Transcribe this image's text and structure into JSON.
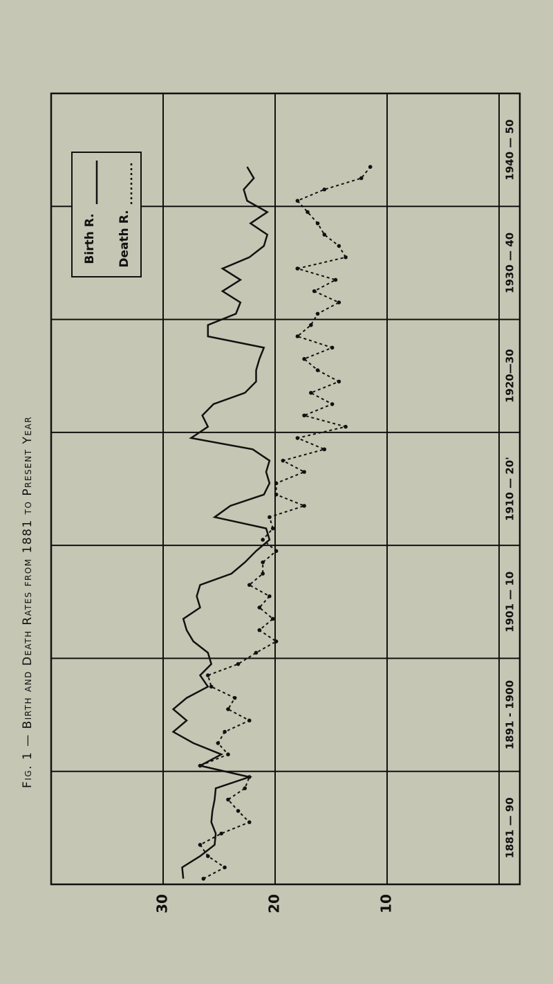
{
  "chart_data": {
    "type": "line",
    "title": "Fig. 1 — Birth and Death Rates from 1881 to Present Year",
    "x": [
      1881,
      1882,
      1883,
      1884,
      1885,
      1886,
      1887,
      1888,
      1889,
      1890,
      1891,
      1892,
      1893,
      1894,
      1895,
      1896,
      1897,
      1898,
      1899,
      1900,
      1901,
      1902,
      1903,
      1904,
      1905,
      1906,
      1907,
      1908,
      1909,
      1910,
      1911,
      1912,
      1913,
      1914,
      1915,
      1916,
      1917,
      1918,
      1919,
      1920,
      1921,
      1922,
      1923,
      1924,
      1925,
      1926,
      1927,
      1928,
      1929,
      1930,
      1931,
      1932,
      1933,
      1934,
      1935,
      1936,
      1937,
      1938,
      1939,
      1940,
      1941,
      1942,
      1943,
      1944
    ],
    "series": [
      {
        "name": "Birth R.",
        "color": "#111111",
        "style": "solid",
        "values": [
          28.2,
          28.3,
          26.7,
          25.4,
          25.3,
          25.7,
          25.6,
          25.4,
          25.3,
          22.3,
          26.7,
          24.8,
          27.3,
          29.1,
          27.9,
          29.1,
          27.9,
          26.0,
          26.7,
          25.7,
          26.0,
          27.3,
          27.9,
          28.2,
          26.7,
          27.0,
          26.7,
          23.9,
          22.7,
          21.7,
          20.5,
          20.8,
          25.4,
          24.0,
          21.0,
          20.5,
          20.8,
          20.5,
          22.0,
          27.5,
          26.0,
          26.5,
          25.5,
          22.7,
          21.7,
          21.7,
          21.4,
          21.0,
          26.0,
          26.0,
          23.5,
          23.1,
          24.7,
          23.1,
          24.7,
          22.3,
          21.0,
          20.7,
          22.2,
          20.7,
          22.5,
          22.8,
          21.9,
          22.5
        ]
      },
      {
        "name": "Death R.",
        "color": "#111111",
        "style": "dotted",
        "values": [
          26.4,
          24.5,
          26.0,
          26.7,
          24.8,
          22.3,
          23.3,
          24.2,
          22.7,
          22.3,
          26.7,
          24.2,
          25.1,
          24.5,
          22.3,
          24.2,
          23.6,
          25.7,
          26.0,
          23.3,
          21.7,
          19.9,
          21.4,
          20.2,
          21.4,
          20.5,
          22.3,
          21.1,
          21.1,
          19.9,
          21.1,
          20.2,
          20.5,
          17.4,
          19.9,
          19.9,
          17.4,
          19.3,
          15.6,
          18.0,
          13.7,
          17.4,
          14.9,
          16.8,
          14.3,
          16.2,
          17.4,
          14.9,
          18.0,
          16.8,
          16.2,
          14.3,
          16.5,
          14.6,
          18.0,
          13.7,
          14.3,
          15.6,
          16.2,
          17.1,
          18.0,
          15.6,
          12.3,
          11.5
        ]
      }
    ],
    "xlim": [
      1880.5,
      1950.5
    ],
    "xticks": [
      1890.5,
      1900.5,
      1910.5,
      1920.5,
      1930.5,
      1940.5
    ],
    "periods": [
      "1881 — 90",
      "1891 - 1900",
      "1901 — 10",
      "1910 — 20'",
      "1920—30",
      "1930 — 40",
      "1940 — 50"
    ],
    "ylim": [
      0,
      40
    ],
    "yticks": [
      10,
      20,
      30
    ],
    "grid": true
  }
}
